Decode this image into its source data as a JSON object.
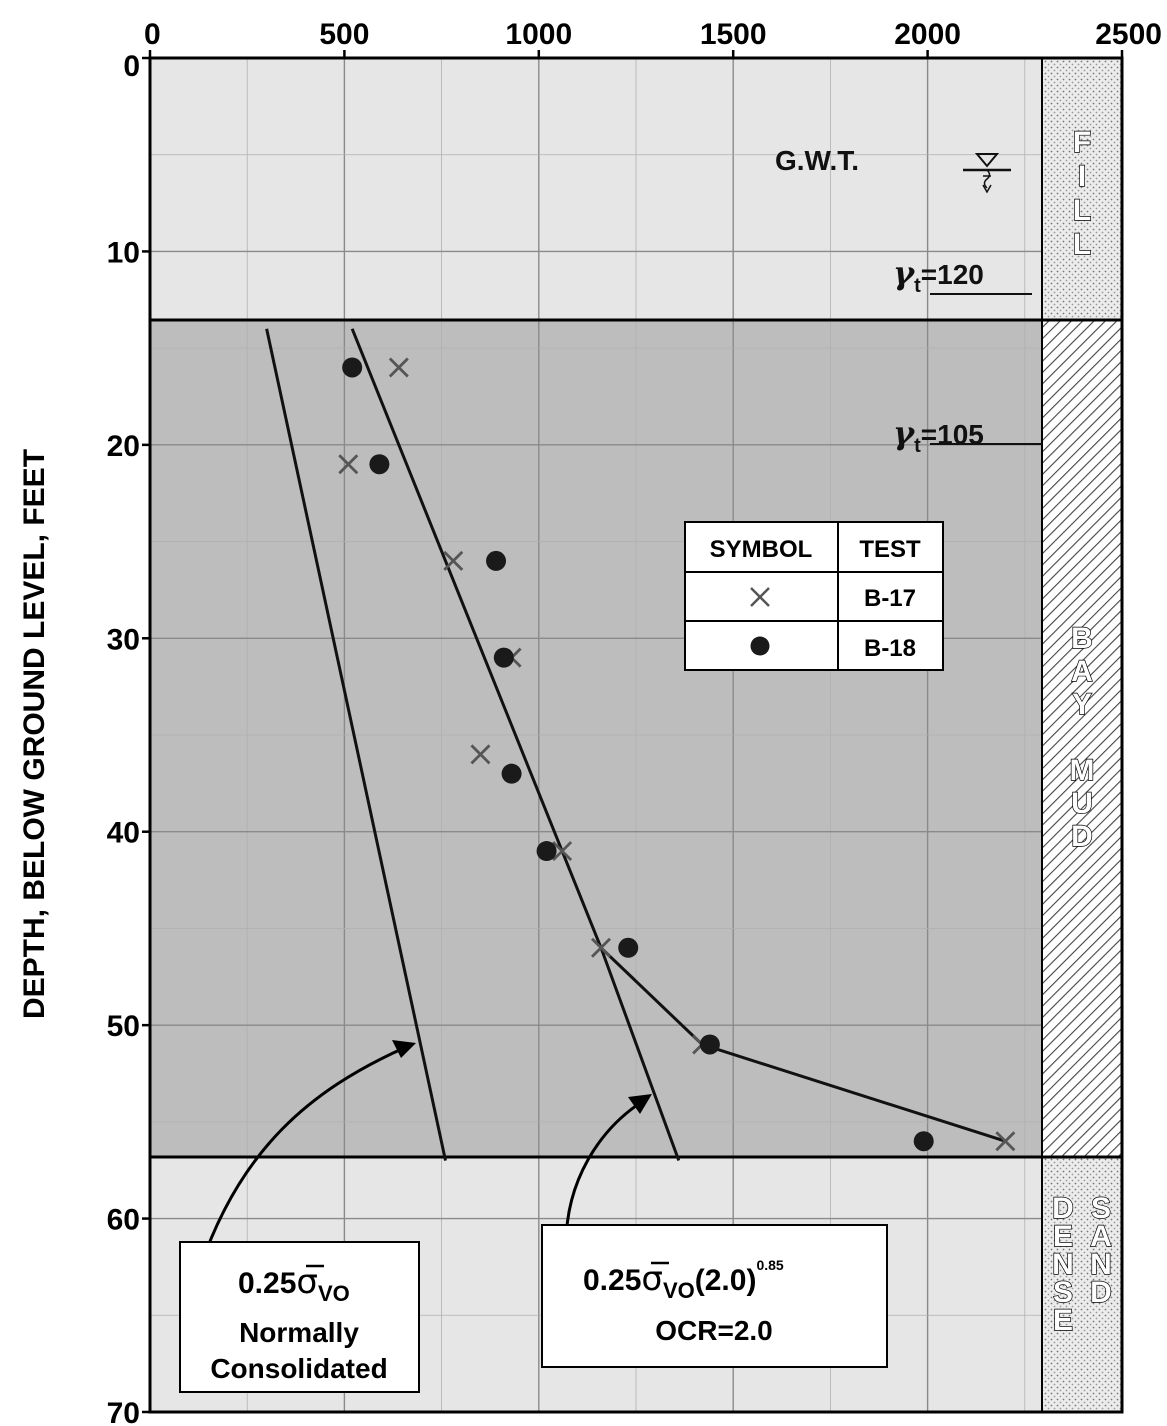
{
  "chart_data": {
    "type": "scatter",
    "ylabel": "DEPTH, BELOW GROUND LEVEL, FEET",
    "xlabel": "",
    "xlim": [
      0,
      2500
    ],
    "ylim": [
      0,
      70
    ],
    "y_inverted": true,
    "x_ticks": [
      "0",
      "500",
      "1000",
      "1500",
      "2000",
      "2500"
    ],
    "y_ticks": [
      "0",
      "10",
      "20",
      "30",
      "40",
      "50",
      "60",
      "70"
    ],
    "grid": true,
    "legend_position": "center-right",
    "legend": {
      "header_symbol": "SYMBOL",
      "header_test": "TEST",
      "entries": [
        {
          "marker": "x",
          "label": "B-17"
        },
        {
          "marker": "dot",
          "label": "B-18"
        }
      ]
    },
    "series": [
      {
        "name": "B-17",
        "marker": "x",
        "color": "#555555",
        "points": [
          [
            640,
            16
          ],
          [
            510,
            21
          ],
          [
            780,
            26
          ],
          [
            930,
            31
          ],
          [
            850,
            36
          ],
          [
            1060,
            41
          ],
          [
            1160,
            46
          ],
          [
            1420,
            51
          ],
          [
            2200,
            56
          ]
        ]
      },
      {
        "name": "B-18",
        "marker": "dot",
        "color": "#1a1a1a",
        "points": [
          [
            520,
            16
          ],
          [
            590,
            21
          ],
          [
            890,
            26
          ],
          [
            910,
            31
          ],
          [
            930,
            37
          ],
          [
            1020,
            41
          ],
          [
            1230,
            46
          ],
          [
            1440,
            51
          ],
          [
            1990,
            56
          ]
        ]
      }
    ],
    "lines": [
      {
        "id": "normally-consolidated",
        "points": [
          [
            300,
            14
          ],
          [
            760,
            57
          ]
        ]
      },
      {
        "id": "ocr-2",
        "points": [
          [
            520,
            14
          ],
          [
            1160,
            46
          ],
          [
            1360,
            57
          ]
        ]
      },
      {
        "id": "measured-trend",
        "points": [
          [
            1160,
            46
          ],
          [
            1420,
            51
          ],
          [
            2200,
            56
          ]
        ]
      }
    ],
    "layers": [
      {
        "label": "FILL",
        "depth_range": [
          0,
          14
        ],
        "unit_weight": "γt=120",
        "pattern": "dotted",
        "color": "#e2e2e2"
      },
      {
        "label": "BAY MUD",
        "depth_range": [
          14,
          57
        ],
        "unit_weight": "γt=105",
        "pattern": "hatched",
        "color": "#bdbdbd"
      },
      {
        "label": "DENSE SAND",
        "depth_range": [
          57,
          70
        ],
        "unit_weight": "",
        "pattern": "dotted",
        "color": "#e2e2e2"
      }
    ],
    "annotations": {
      "gwt": "G.W.T.",
      "fill_gamma": "γt=120",
      "mud_gamma": "γt=105",
      "nc_formula": "0.25σVO",
      "nc_text1": "Normally",
      "nc_text2": "Consolidated",
      "ocr_formula": "0.25σVO(2.0)0.85",
      "ocr_text": "OCR=2.0"
    },
    "text_parts": {
      "fill_letters": [
        "F",
        "I",
        "L",
        "L"
      ],
      "mud_letters": [
        "B",
        "A",
        "Y",
        "M",
        "U",
        "D"
      ],
      "dense_letters": [
        "D",
        "E",
        "N",
        "S",
        "E"
      ],
      "sand_letters": [
        "S",
        "A",
        "N",
        "D"
      ],
      "gamma_symbol": "γ",
      "gamma_sub": "t",
      "gamma_fill_value": "=120",
      "gamma_mud_value": "=105",
      "formula_prefix": "0.25",
      "sigma_symbol": "σ",
      "sigma_sub": "VO",
      "ocr_tail": "(2.0)",
      "ocr_exp": "0.85"
    }
  }
}
